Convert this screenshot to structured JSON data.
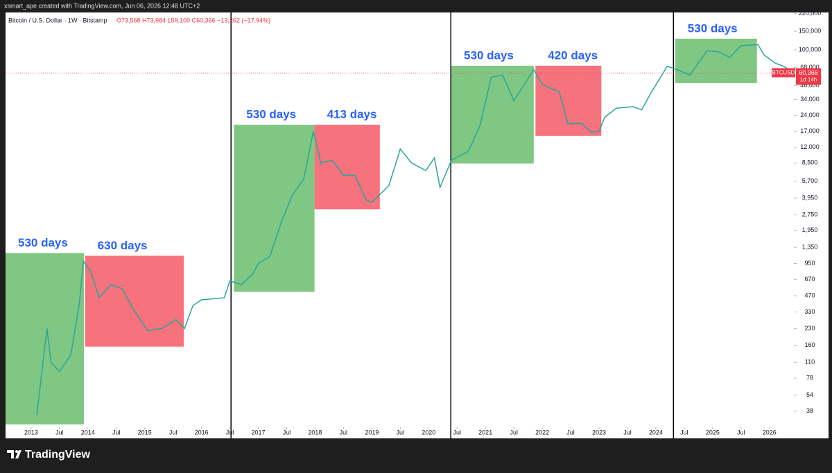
{
  "attribution": "xsmart_ape created with TradingView.com, Jun 06, 2026 12:48 UTC+2",
  "brand": "TradingView",
  "chart_data": {
    "type": "line",
    "symbol": "Bitcoin / U.S. Dollar · 1W · Bitstamp",
    "ohlc": "O73,568 H73,984 L59,100 C60,366 −13,262 (−17.94%)",
    "log_scale": true,
    "x": [
      2013.1,
      2013.28,
      2013.35,
      2013.5,
      2013.7,
      2013.85,
      2013.92,
      2014.05,
      2014.2,
      2014.4,
      2014.6,
      2014.8,
      2015.05,
      2015.3,
      2015.55,
      2015.7,
      2015.85,
      2016.0,
      2016.4,
      2016.5,
      2016.7,
      2016.9,
      2017.0,
      2017.2,
      2017.4,
      2017.6,
      2017.8,
      2017.97,
      2018.1,
      2018.3,
      2018.5,
      2018.7,
      2018.9,
      2019.0,
      2019.3,
      2019.5,
      2019.7,
      2019.95,
      2020.1,
      2020.2,
      2020.4,
      2020.7,
      2020.9,
      2021.0,
      2021.1,
      2021.3,
      2021.5,
      2021.85,
      2022.0,
      2022.3,
      2022.45,
      2022.7,
      2022.87,
      2023.0,
      2023.1,
      2023.3,
      2023.6,
      2023.75,
      2023.9,
      2024.2,
      2024.4,
      2024.6,
      2024.9,
      2025.1,
      2025.3,
      2025.5,
      2025.8,
      2025.9,
      2026.1,
      2026.25,
      2026.43
    ],
    "series": [
      {
        "name": "BTCUSD",
        "color": "#26a69a",
        "values": [
          35,
          230,
          110,
          90,
          130,
          400,
          1000,
          800,
          450,
          600,
          550,
          350,
          220,
          230,
          280,
          230,
          380,
          430,
          450,
          650,
          600,
          750,
          950,
          1100,
          2300,
          4200,
          6000,
          17000,
          8500,
          9000,
          6500,
          6500,
          3800,
          3600,
          5200,
          11500,
          8500,
          7200,
          9500,
          5000,
          9000,
          11000,
          19000,
          32000,
          55000,
          58000,
          33000,
          65000,
          47000,
          40000,
          20000,
          20000,
          16500,
          17000,
          23000,
          28000,
          29000,
          27000,
          38000,
          70000,
          64000,
          58000,
          98000,
          96000,
          85000,
          110000,
          112000,
          90000,
          75000,
          70000,
          60366
        ]
      }
    ],
    "last_price": {
      "value": 60366,
      "label": "60,366"
    },
    "last_price_tag": "BTCUSD",
    "countdown": "1d 14h",
    "xlim": [
      2012.55,
      2026.43
    ],
    "ylim": [
      21,
      226000
    ],
    "xticks": [
      2013,
      {
        "value": 2013.5,
        "label": "Jul"
      },
      2014,
      {
        "value": 2014.5,
        "label": "Jul"
      },
      2015,
      {
        "value": 2015.5,
        "label": "Jul"
      },
      2016,
      {
        "value": 2016.5,
        "label": "Jul"
      },
      2017,
      {
        "value": 2017.5,
        "label": "Jul"
      },
      2018,
      {
        "value": 2018.5,
        "label": "Jul"
      },
      2019,
      {
        "value": 2019.5,
        "label": "Jul"
      },
      2020,
      {
        "value": 2020.5,
        "label": "Jul"
      },
      2021,
      {
        "value": 2021.5,
        "label": "Jul"
      },
      2022,
      {
        "value": 2022.5,
        "label": "Jul"
      },
      2023,
      {
        "value": 2023.5,
        "label": "Jul"
      },
      2024,
      {
        "value": 2024.5,
        "label": "Jul"
      },
      2025,
      {
        "value": 2025.5,
        "label": "Jul"
      },
      2026
    ],
    "yticks": [
      {
        "value": 220000,
        "label": "220,000"
      },
      {
        "value": 150000,
        "label": "150,000"
      },
      {
        "value": 100000,
        "label": "100,000"
      },
      {
        "value": 68000,
        "label": "68,000"
      },
      {
        "value": 46000,
        "label": "46,000"
      },
      {
        "value": 34000,
        "label": "34,000"
      },
      {
        "value": 24000,
        "label": "24,000"
      },
      {
        "value": 17000,
        "label": "17,000"
      },
      {
        "value": 12000,
        "label": "12,000"
      },
      {
        "value": 8500,
        "label": "8,500"
      },
      {
        "value": 5700,
        "label": "5,700"
      },
      {
        "value": 3950,
        "label": "3,950"
      },
      {
        "value": 2750,
        "label": "2,750"
      },
      {
        "value": 1950,
        "label": "1,950"
      },
      {
        "value": 1350,
        "label": "1,350"
      },
      950,
      670,
      470,
      330,
      230,
      160,
      110,
      78,
      54,
      38
    ],
    "boxes": [
      {
        "label": "530 days",
        "color": "#4caf50",
        "x": [
          2012.55,
          2013.93
        ],
        "y": [
          28.5,
          1193
        ]
      },
      {
        "label": "630 days",
        "color": "#f23645",
        "x": [
          2013.95,
          2015.69
        ],
        "y": [
          155,
          1124
        ]
      },
      {
        "label": "530 days",
        "color": "#4caf50",
        "x": [
          2016.57,
          2017.99
        ],
        "y": [
          512,
          19580
        ]
      },
      {
        "label": "413 days",
        "color": "#f23645",
        "x": [
          2017.99,
          2019.14
        ],
        "y": [
          3094,
          19580
        ]
      },
      {
        "label": "530 days",
        "color": "#4caf50",
        "x": [
          2020.4,
          2021.85
        ],
        "y": [
          8390,
          70760
        ]
      },
      {
        "label": "420 days",
        "color": "#f23645",
        "x": [
          2021.88,
          2023.04
        ],
        "y": [
          15350,
          70760
        ]
      },
      {
        "label": "530 days",
        "color": "#4caf50",
        "x": [
          2024.34,
          2025.78
        ],
        "y": [
          48500,
          127600
        ]
      }
    ],
    "vlines": [
      2016.52,
      2020.39,
      2024.31
    ]
  }
}
